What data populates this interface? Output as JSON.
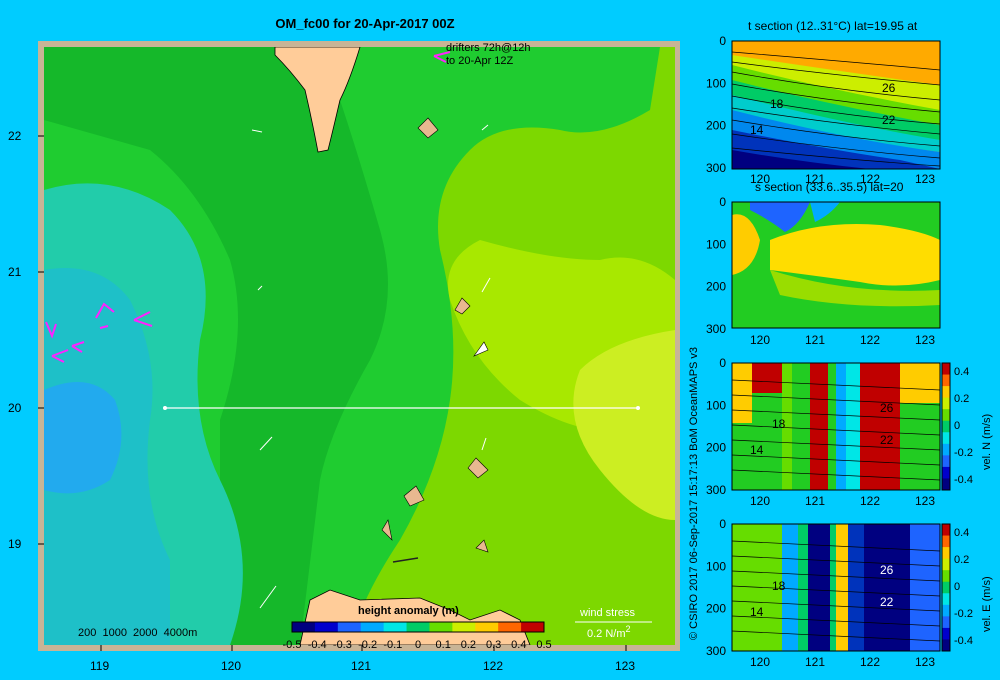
{
  "title": "OM_fc00 for 20-Apr-2017 00Z",
  "map": {
    "lat_ticks": [
      "22",
      "21",
      "20",
      "19"
    ],
    "lon_ticks": [
      "119",
      "120",
      "121",
      "122",
      "123"
    ],
    "drifters_line1": "drifters 72h@12h",
    "drifters_line2": "to 20-Apr 12Z",
    "depth_legend": "200  1000  2000  4000m",
    "wind_label": "wind stress",
    "wind_unit": "0.2 N/m",
    "wind_unit_sup": "2",
    "colorbar_title": "height anomaly (m)",
    "colorbar_ticks": [
      "-0.5",
      "-0.4",
      "-0.3",
      "-0.2",
      "-0.1",
      "0",
      "0.1",
      "0.2",
      "0.3",
      "0.4",
      "0.5"
    ],
    "colorbar_colors": [
      "#000080",
      "#0000cd",
      "#1e64ff",
      "#00aaff",
      "#00e6e6",
      "#00cc66",
      "#66dd00",
      "#ccee00",
      "#ffcc00",
      "#ff6600",
      "#c00000"
    ]
  },
  "credit": "© CSIRO 2017   06-Sep-2017 15:17:13 BoM OceanMAPS v3",
  "panels": {
    "t_title": "t section (12..31°C) lat=19.95 at",
    "s_title": "s section (33.6..35.5) lat=20",
    "depth_ticks": [
      "0",
      "100",
      "200",
      "300"
    ],
    "lon_ticks": [
      "120",
      "121",
      "122",
      "123"
    ],
    "t_contours": [
      "26",
      "18",
      "22",
      "14"
    ],
    "vn_contours": [
      "26",
      "18",
      "22",
      "14"
    ],
    "ve_contours": [
      "26",
      "18",
      "22",
      "14"
    ],
    "vn_label": "vel. N (m/s)",
    "ve_label": "vel. E (m/s)",
    "vel_ticks": [
      "0.4",
      "0.2",
      "0",
      "-0.2",
      "-0.4"
    ]
  }
}
